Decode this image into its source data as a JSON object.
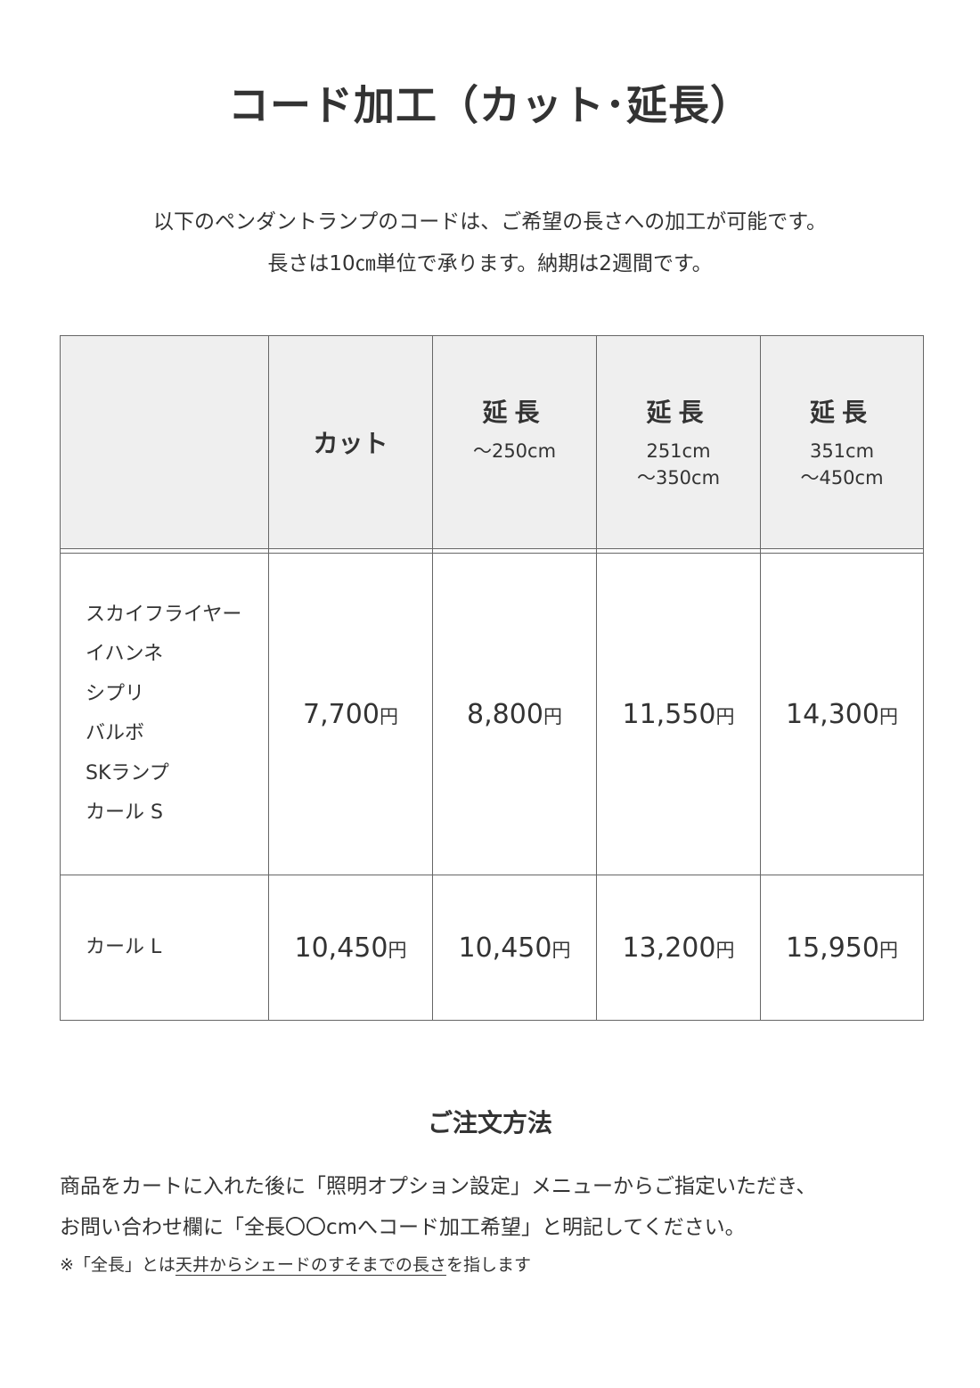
{
  "title": "コード加工（カット･延長）",
  "intro": [
    "以下のペンダントランプのコードは、ご希望の長さへの加工が可能です。",
    "長さは10㎝単位で承ります。納期は2週間です。"
  ],
  "table": {
    "headers": [
      {
        "main": "カット",
        "sub": []
      },
      {
        "main": "延長",
        "sub": [
          "～250cm"
        ]
      },
      {
        "main": "延長",
        "sub": [
          "251cm",
          "～350cm"
        ]
      },
      {
        "main": "延長",
        "sub": [
          "351cm",
          "～450cm"
        ]
      }
    ],
    "rows": [
      {
        "products": [
          "スカイフライヤー",
          "イハンネ",
          "シプリ",
          "バルボ",
          "SKランプ",
          "カール S"
        ],
        "prices": [
          "7,700",
          "8,800",
          "11,550",
          "14,300"
        ]
      },
      {
        "products": [
          "カール L"
        ],
        "prices": [
          "10,450",
          "10,450",
          "13,200",
          "15,950"
        ]
      }
    ],
    "currency": "円"
  },
  "order": {
    "heading": "ご注文方法",
    "lines": [
      "商品をカートに入れた後に「照明オプション設定」メニューからご指定いただき、",
      "お問い合わせ欄に「全長〇〇cmへコード加工希望」と明記してください。"
    ],
    "note_prefix": "※「全長」とは",
    "note_underlined": "天井からシェードのすそまでの長さ",
    "note_suffix": "を指します"
  }
}
